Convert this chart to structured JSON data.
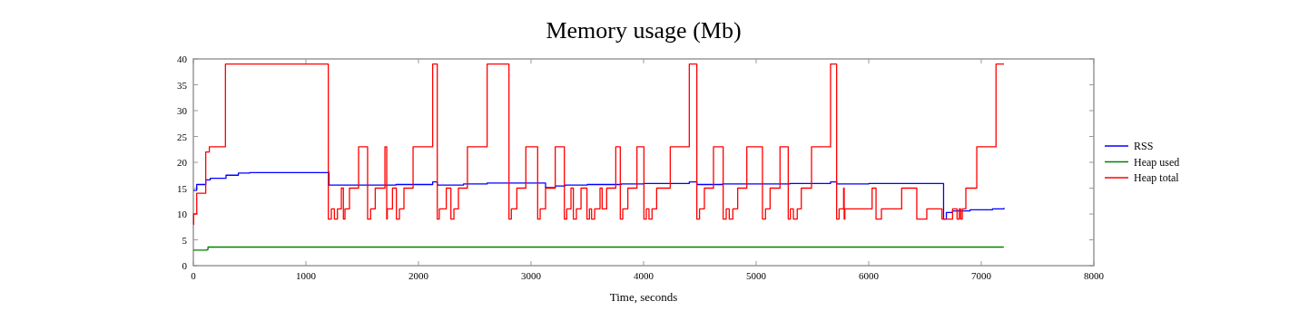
{
  "chart_data": {
    "type": "step",
    "title": "Memory usage (Mb)",
    "xlabel": "Time, seconds",
    "xlim": [
      0,
      8000
    ],
    "xticks": [
      0,
      1000,
      2000,
      3000,
      4000,
      5000,
      6000,
      7000,
      8000
    ],
    "ylim": [
      0,
      40
    ],
    "yticks": [
      0,
      5,
      10,
      15,
      20,
      25,
      30,
      35,
      40
    ],
    "grid": false,
    "legend": "right",
    "line_style": "solid",
    "series": [
      {
        "name": "RSS",
        "color": "#0000ff",
        "x": [
          0,
          30,
          110,
          150,
          290,
          400,
          500,
          1199,
          1205,
          1800,
          2126,
          2167,
          2400,
          2610,
          2800,
          3129,
          3215,
          3300,
          3500,
          3800,
          4000,
          4406,
          4473,
          4700,
          5000,
          5300,
          5661,
          5715,
          6000,
          6300,
          6651,
          6665,
          6690,
          6745,
          6900,
          7100,
          7202
        ],
        "values": [
          14.6,
          15.7,
          16.6,
          16.9,
          17.5,
          17.9,
          18,
          18.1,
          15.6,
          15.7,
          16.2,
          15.6,
          15.8,
          16,
          16,
          15.1,
          15.4,
          15.6,
          15.7,
          15.8,
          15.9,
          16.2,
          15.7,
          15.8,
          15.8,
          15.9,
          16.2,
          15.8,
          15.9,
          15.9,
          15.9,
          9,
          10.3,
          10.6,
          10.8,
          11,
          11.2
        ]
      },
      {
        "name": "Heap used",
        "color": "#008000",
        "x": [
          0,
          60,
          120,
          130,
          400,
          700,
          900,
          1400,
          1700,
          2200,
          2600,
          3000,
          3100,
          3400,
          3800,
          4200,
          4500,
          4800,
          5200,
          5800,
          5810,
          6000,
          6500,
          6600,
          6900,
          7200
        ],
        "values": [
          3,
          3,
          3.1,
          3.6,
          3.6,
          3.6,
          3.6,
          3.6,
          3.6,
          3.6,
          3.6,
          3.6,
          3.6,
          3.6,
          3.6,
          3.6,
          3.6,
          3.6,
          3.6,
          3.6,
          3.6,
          3.6,
          3.6,
          3.6,
          3.6,
          3.6
        ]
      },
      {
        "name": "Heap total",
        "color": "#ff0000",
        "x": [
          0,
          3,
          30,
          110,
          142,
          285,
          1199,
          1226,
          1253,
          1280,
          1315,
          1333,
          1347,
          1387,
          1468,
          1548,
          1575,
          1616,
          1702,
          1718,
          1723,
          1769,
          1804,
          1831,
          1871,
          1952,
          2126,
          2167,
          2185,
          2247,
          2288,
          2315,
          2355,
          2435,
          2610,
          2804,
          2825,
          2874,
          2954,
          3059,
          3081,
          3129,
          3215,
          3296,
          3317,
          3355,
          3376,
          3403,
          3444,
          3497,
          3519,
          3538,
          3565,
          3613,
          3632,
          3672,
          3753,
          3793,
          3815,
          3860,
          3941,
          4003,
          4024,
          4048,
          4075,
          4116,
          4237,
          4406,
          4473,
          4497,
          4540,
          4621,
          4707,
          4734,
          4761,
          4793,
          4836,
          4917,
          5056,
          5083,
          5124,
          5212,
          5285,
          5304,
          5331,
          5365,
          5401,
          5492,
          5661,
          5715,
          5737,
          5777,
          5782,
          5788,
          5815,
          6030,
          6065,
          6113,
          6293,
          6427,
          6516,
          6651,
          6745,
          6785,
          6804,
          6817,
          6831,
          6863,
          6960,
          7131,
          7202
        ],
        "values": [
          8,
          10,
          14,
          22,
          23,
          39,
          9,
          11,
          9,
          11,
          15,
          9,
          11,
          15,
          23,
          9,
          11,
          15,
          23,
          9,
          11,
          15,
          9,
          11,
          15,
          23,
          39,
          9,
          11,
          15,
          9,
          11,
          15,
          23,
          39,
          9,
          11,
          15,
          23,
          9,
          11,
          15,
          23,
          9,
          11,
          15,
          9,
          11,
          15,
          9,
          11,
          9,
          11,
          15,
          11,
          15,
          23,
          9,
          11,
          15,
          23,
          9,
          11,
          9,
          11,
          15,
          23,
          39,
          9,
          11,
          15,
          23,
          9,
          11,
          9,
          11,
          15,
          23,
          9,
          11,
          15,
          23,
          9,
          11,
          9,
          11,
          15,
          23,
          39,
          9,
          11,
          15,
          9,
          11,
          11,
          15,
          9,
          11,
          15,
          9,
          11,
          9,
          11,
          9,
          11,
          9,
          11,
          15,
          23,
          39,
          39
        ]
      }
    ]
  }
}
